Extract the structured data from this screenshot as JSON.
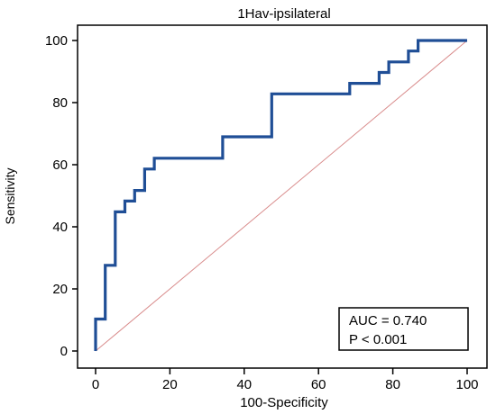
{
  "chart_data": {
    "type": "line",
    "title": "1Hav-ipsilateral",
    "xlabel": "100-Specificity",
    "ylabel": "Sensitivity",
    "xlim": [
      0,
      100
    ],
    "ylim": [
      0,
      100
    ],
    "xticks": [
      0,
      20,
      40,
      60,
      80,
      100
    ],
    "yticks": [
      0,
      20,
      40,
      60,
      80,
      100
    ],
    "grid": false,
    "series": [
      {
        "style": "step",
        "color": "#1f4e96",
        "points": [
          [
            0,
            0
          ],
          [
            0,
            10.3
          ],
          [
            2.6,
            10.3
          ],
          [
            2.6,
            27.6
          ],
          [
            5.3,
            27.6
          ],
          [
            5.3,
            44.8
          ],
          [
            7.9,
            44.8
          ],
          [
            7.9,
            48.3
          ],
          [
            10.5,
            48.3
          ],
          [
            10.5,
            51.7
          ],
          [
            13.2,
            51.7
          ],
          [
            13.2,
            58.6
          ],
          [
            15.8,
            58.6
          ],
          [
            15.8,
            62.1
          ],
          [
            34.2,
            62.1
          ],
          [
            34.2,
            69.0
          ],
          [
            47.4,
            69.0
          ],
          [
            47.4,
            82.8
          ],
          [
            68.4,
            82.8
          ],
          [
            68.4,
            86.2
          ],
          [
            76.3,
            86.2
          ],
          [
            76.3,
            89.7
          ],
          [
            78.9,
            89.7
          ],
          [
            78.9,
            93.1
          ],
          [
            84.2,
            93.1
          ],
          [
            84.2,
            96.6
          ],
          [
            86.8,
            96.6
          ],
          [
            86.8,
            100
          ],
          [
            100,
            100
          ]
        ]
      },
      {
        "style": "reference",
        "color": "#d98c8c",
        "points": [
          [
            0,
            0
          ],
          [
            100,
            100
          ]
        ]
      }
    ],
    "annotation": {
      "auc": "AUC = 0.740",
      "p": "P < 0.001"
    }
  }
}
